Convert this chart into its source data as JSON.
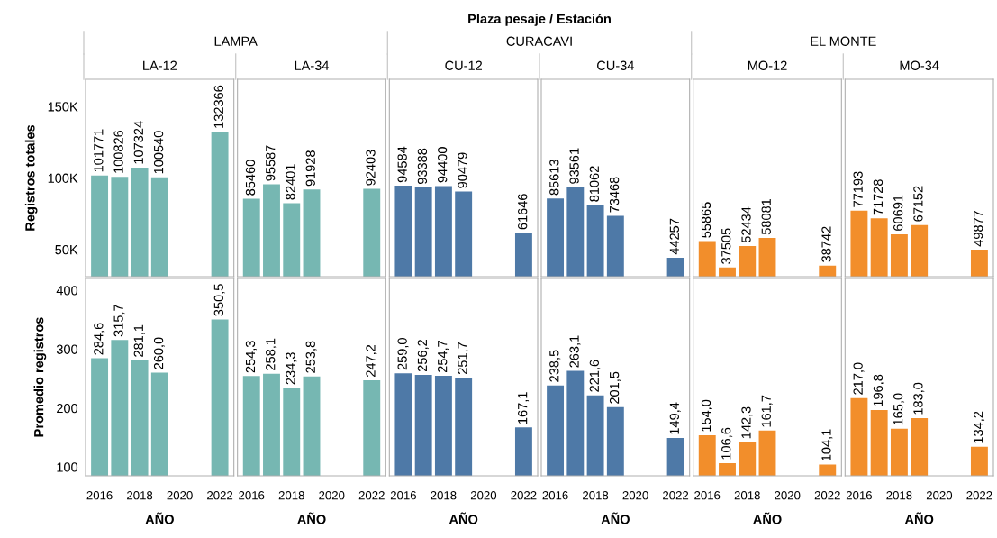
{
  "chart_data": [
    {
      "type": "bar",
      "title": "LA-12",
      "subtitle": "LAMPA",
      "annotations": [
        "Plaza pesaje / Estación"
      ],
      "ylabel": "Registros totales",
      "x": [
        2016,
        2017,
        2018,
        2019,
        2022
      ],
      "values": [
        101771,
        100826,
        107324,
        100540,
        132366
      ],
      "color": "#76b7b2",
      "xlim": [
        2015.3,
        2022.7
      ],
      "ylim": [
        31000,
        169000
      ],
      "yticks": [
        {
          "value": 50000,
          "label": "50K"
        },
        {
          "value": 100000,
          "label": "100K"
        },
        {
          "value": 150000,
          "label": "150K"
        }
      ],
      "data_labels": true,
      "tick_labels": "y"
    },
    {
      "type": "bar",
      "title": "LA-34",
      "x": [
        2016,
        2017,
        2018,
        2019,
        2022
      ],
      "values": [
        85460,
        95587,
        82401,
        91928,
        92403
      ],
      "color": "#76b7b2",
      "xlim": [
        2015.3,
        2022.7
      ],
      "ylim": [
        31000,
        169000
      ],
      "data_labels": true,
      "tick_labels": false
    },
    {
      "type": "bar",
      "title": "CU-12",
      "subtitle": "CURACAVI",
      "x": [
        2016,
        2017,
        2018,
        2019,
        2022
      ],
      "values": [
        94584,
        93388,
        94400,
        90479,
        61646
      ],
      "color": "#4e79a7",
      "xlim": [
        2015.3,
        2022.7
      ],
      "ylim": [
        31000,
        169000
      ],
      "data_labels": true,
      "tick_labels": false
    },
    {
      "type": "bar",
      "title": "CU-34",
      "x": [
        2016,
        2017,
        2018,
        2019,
        2022
      ],
      "values": [
        85613,
        93561,
        81062,
        73468,
        44257
      ],
      "color": "#4e79a7",
      "xlim": [
        2015.3,
        2022.7
      ],
      "ylim": [
        31000,
        169000
      ],
      "data_labels": true,
      "tick_labels": false
    },
    {
      "type": "bar",
      "title": "MO-12",
      "subtitle": "EL MONTE",
      "x": [
        2016,
        2017,
        2018,
        2019,
        2022
      ],
      "values": [
        55865,
        37505,
        52434,
        58081,
        38742
      ],
      "color": "#f28e2b",
      "xlim": [
        2015.3,
        2022.7
      ],
      "ylim": [
        31000,
        169000
      ],
      "data_labels": true,
      "tick_labels": false
    },
    {
      "type": "bar",
      "title": "MO-34",
      "x": [
        2016,
        2017,
        2018,
        2019,
        2022
      ],
      "values": [
        77193,
        71728,
        60691,
        67152,
        49877
      ],
      "color": "#f28e2b",
      "xlim": [
        2015.3,
        2022.7
      ],
      "ylim": [
        31000,
        169000
      ],
      "data_labels": true,
      "tick_labels": false
    },
    {
      "type": "bar",
      "ylabel": "Promedio registros",
      "xlabel": "AÑO",
      "x": [
        2016,
        2017,
        2018,
        2019,
        2022
      ],
      "values": [
        284.6,
        315.7,
        281.1,
        260.0,
        350.5
      ],
      "value_labels": [
        "284,6",
        "315,7",
        "281,1",
        "260,0",
        "350,5"
      ],
      "color": "#76b7b2",
      "xlim": [
        2015.3,
        2022.7
      ],
      "xticks": [
        2016,
        2018,
        2020,
        2022
      ],
      "ylim": [
        85,
        420
      ],
      "yticks": [
        100,
        200,
        300,
        400
      ]
    },
    {
      "type": "bar",
      "xlabel": "AÑO",
      "x": [
        2016,
        2017,
        2018,
        2019,
        2022
      ],
      "values": [
        254.3,
        258.1,
        234.3,
        253.8,
        247.2
      ],
      "value_labels": [
        "254,3",
        "258,1",
        "234,3",
        "253,8",
        "247,2"
      ],
      "color": "#76b7b2",
      "xlim": [
        2015.3,
        2022.7
      ],
      "xticks": [
        2016,
        2018,
        2020,
        2022
      ],
      "ylim": [
        85,
        420
      ],
      "tick_labels": "x"
    },
    {
      "type": "bar",
      "xlabel": "AÑO",
      "x": [
        2016,
        2017,
        2018,
        2019,
        2022
      ],
      "values": [
        259.0,
        256.2,
        254.7,
        251.7,
        167.1
      ],
      "value_labels": [
        "259,0",
        "256,2",
        "254,7",
        "251,7",
        "167,1"
      ],
      "color": "#4e79a7",
      "xlim": [
        2015.3,
        2022.7
      ],
      "xticks": [
        2016,
        2018,
        2020,
        2022
      ],
      "ylim": [
        85,
        420
      ],
      "tick_labels": "x"
    },
    {
      "type": "bar",
      "xlabel": "AÑO",
      "x": [
        2016,
        2017,
        2018,
        2019,
        2022
      ],
      "values": [
        238.5,
        263.1,
        221.6,
        201.5,
        149.4
      ],
      "value_labels": [
        "238,5",
        "263,1",
        "221,6",
        "201,5",
        "149,4"
      ],
      "color": "#4e79a7",
      "xlim": [
        2015.3,
        2022.7
      ],
      "xticks": [
        2016,
        2018,
        2020,
        2022
      ],
      "ylim": [
        85,
        420
      ],
      "tick_labels": "x"
    },
    {
      "type": "bar",
      "xlabel": "AÑO",
      "x": [
        2016,
        2017,
        2018,
        2019,
        2022
      ],
      "values": [
        154.0,
        106.6,
        142.3,
        161.7,
        104.1
      ],
      "value_labels": [
        "154,0",
        "106,6",
        "142,3",
        "161,7",
        "104,1"
      ],
      "color": "#f28e2b",
      "xlim": [
        2015.3,
        2022.7
      ],
      "xticks": [
        2016,
        2018,
        2020,
        2022
      ],
      "ylim": [
        85,
        420
      ],
      "tick_labels": "x"
    },
    {
      "type": "bar",
      "xlabel": "AÑO",
      "x": [
        2016,
        2017,
        2018,
        2019,
        2022
      ],
      "values": [
        217.0,
        196.8,
        165.0,
        183.0,
        134.2
      ],
      "value_labels": [
        "217,0",
        "196,8",
        "165,0",
        "183,0",
        "134,2"
      ],
      "color": "#f28e2b",
      "xlim": [
        2015.3,
        2022.7
      ],
      "xticks": [
        2016,
        2018,
        2020,
        2022
      ],
      "ylim": [
        85,
        420
      ],
      "tick_labels": "x"
    }
  ]
}
